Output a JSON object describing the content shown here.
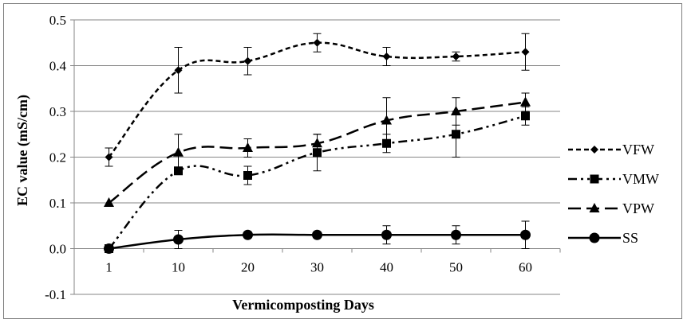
{
  "chart_data": {
    "type": "line",
    "title": "",
    "xlabel": "Vermicomposting Days",
    "ylabel": "EC value (mS/cm)",
    "categories": [
      "1",
      "10",
      "20",
      "30",
      "40",
      "50",
      "60"
    ],
    "ylim": [
      -0.1,
      0.5
    ],
    "yticks": [
      "-0.1",
      "0.0",
      "0.1",
      "0.2",
      "0.3",
      "0.4",
      "0.5"
    ],
    "grid": true,
    "legend_position": "right",
    "series": [
      {
        "name": "VFW",
        "values": [
          0.2,
          0.39,
          0.41,
          0.45,
          0.42,
          0.42,
          0.43
        ],
        "errors": [
          0.02,
          0.05,
          0.03,
          0.02,
          0.02,
          0.01,
          0.04
        ],
        "marker": "diamond",
        "dash": "dash"
      },
      {
        "name": "VMW",
        "values": [
          0.0,
          0.17,
          0.16,
          0.21,
          0.23,
          0.25,
          0.29
        ],
        "errors": [
          0.0,
          0.0,
          0.02,
          0.04,
          0.02,
          0.05,
          0.02
        ],
        "marker": "square",
        "dash": "dashdotdot"
      },
      {
        "name": "VPW",
        "values": [
          0.1,
          0.21,
          0.22,
          0.23,
          0.28,
          0.3,
          0.32
        ],
        "errors": [
          0.0,
          0.04,
          0.02,
          0.02,
          0.05,
          0.03,
          0.02
        ],
        "marker": "triangle",
        "dash": "longdash"
      },
      {
        "name": "SS",
        "values": [
          0.0,
          0.02,
          0.03,
          0.03,
          0.03,
          0.03,
          0.03
        ],
        "errors": [
          0.0,
          0.02,
          0.0,
          0.0,
          0.02,
          0.02,
          0.03
        ],
        "marker": "circle",
        "dash": "solid"
      }
    ],
    "colors": {
      "series": "#000000",
      "grid": "#868686",
      "axis": "#868686",
      "frame": "#7f7f7f"
    }
  }
}
